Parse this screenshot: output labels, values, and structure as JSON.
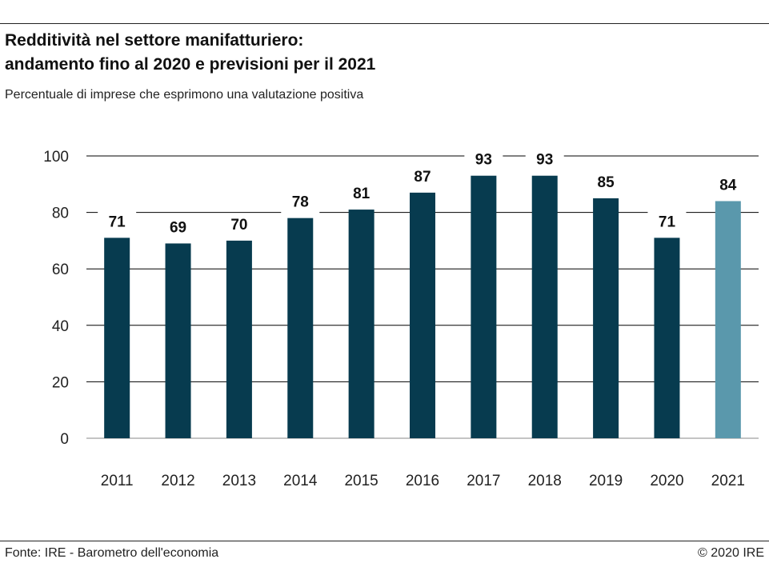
{
  "header": {
    "title_line1": "Redditività nel settore manifatturiero:",
    "title_line2": "andamento fino al 2020 e previsioni per il 2021",
    "subtitle": "Percentuale di imprese che esprimono una valutazione positiva"
  },
  "footer": {
    "source": "Fonte: IRE - Barometro dell'economia",
    "copyright": "© 2020 IRE"
  },
  "chart_data": {
    "type": "bar",
    "title": "Redditività nel settore manifatturiero: andamento fino al 2020 e previsioni per il 2021",
    "subtitle": "Percentuale di imprese che esprimono una valutazione positiva",
    "categories": [
      "2011",
      "2012",
      "2013",
      "2014",
      "2015",
      "2016",
      "2017",
      "2018",
      "2019",
      "2020",
      "2021"
    ],
    "values": [
      71,
      69,
      70,
      78,
      81,
      87,
      93,
      93,
      85,
      71,
      84
    ],
    "data_labels": [
      "71",
      "69",
      "70",
      "78",
      "81",
      "87",
      "93",
      "93",
      "85",
      "71",
      "84"
    ],
    "xlabel": "",
    "ylabel": "",
    "ylim": [
      0,
      100
    ],
    "yticks": [
      0,
      20,
      40,
      60,
      80,
      100
    ],
    "grid": true,
    "legend": "none",
    "colors": {
      "actual": "#073b4f",
      "forecast": "#5a98ac",
      "grid": "#000000"
    },
    "forecast_categories": [
      "2021"
    ]
  }
}
